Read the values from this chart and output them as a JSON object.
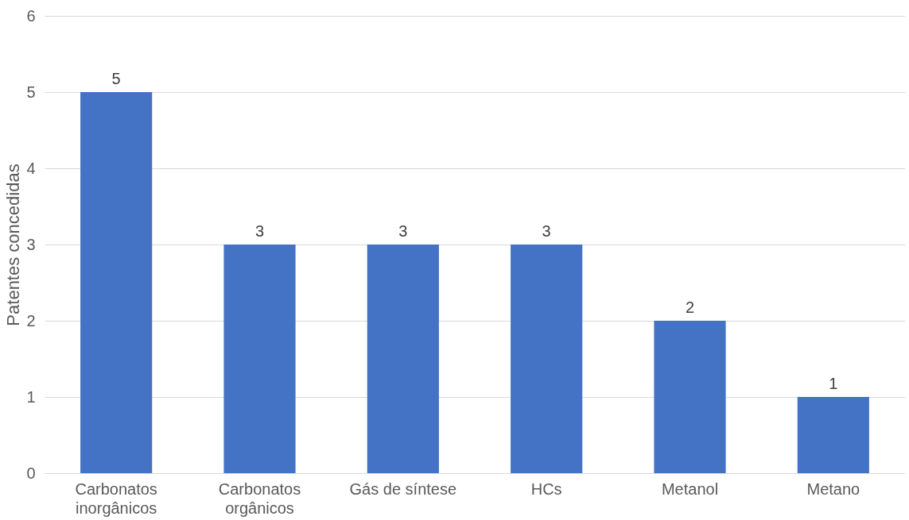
{
  "chart_data": {
    "type": "bar",
    "ylabel": "Patentes concedidas",
    "categories": [
      "Carbonatos inorgânicos",
      "Carbonatos orgânicos",
      "Gás de síntese",
      "HCs",
      "Metanol",
      "Metano"
    ],
    "values": [
      5,
      3,
      3,
      3,
      2,
      1
    ],
    "color": "#4472c4",
    "ylim": [
      0,
      6
    ],
    "yticks": [
      0,
      1,
      2,
      3,
      4,
      5,
      6
    ],
    "grid": "y",
    "data_labels": true
  }
}
